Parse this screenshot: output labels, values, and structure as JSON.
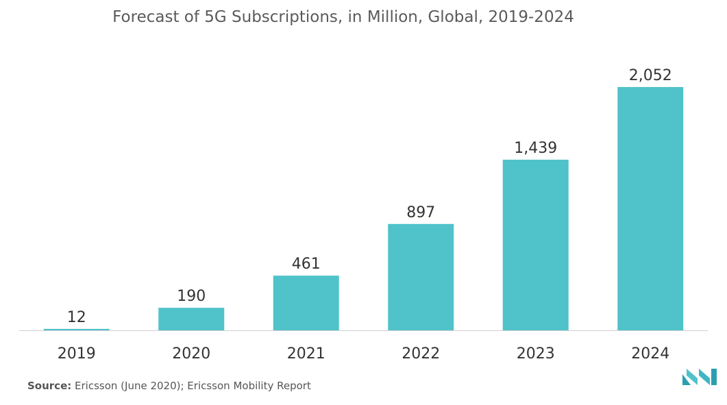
{
  "chart_data": {
    "type": "bar",
    "title": "Forecast of 5G Subscriptions, in Million, Global, 2019-2024",
    "categories": [
      "2019",
      "2020",
      "2021",
      "2022",
      "2023",
      "2024"
    ],
    "values": [
      12,
      190,
      461,
      897,
      1439,
      2052
    ],
    "value_labels": [
      "12",
      "190",
      "461",
      "897",
      "1,439",
      "2,052"
    ],
    "xlabel": "",
    "ylabel": "",
    "ylim": [
      0,
      2052
    ],
    "grid": false,
    "legend": "none"
  },
  "colors": {
    "bar": "#4fc3c9",
    "axis": "#d0d0d0",
    "text": "#333333"
  },
  "source": {
    "label": "Source:",
    "text": "Ericsson (June 2020); Ericsson Mobility Report"
  },
  "logo": {
    "icon": "mordor-intelligence-logo-icon"
  }
}
